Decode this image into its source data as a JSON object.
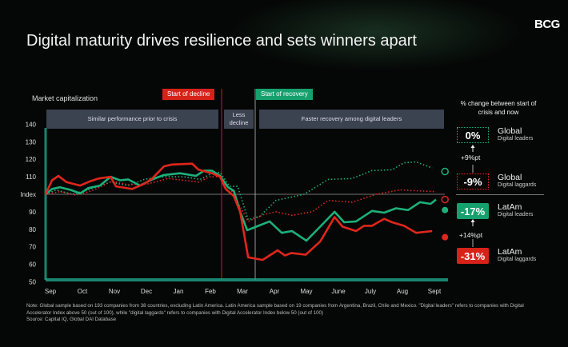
{
  "header": {
    "title": "Digital maturity drives resilience and sets winners apart",
    "logo": "BCG"
  },
  "colors": {
    "leaders": "#1db07a",
    "laggards": "#e0261c",
    "banner": "#3b4250",
    "axis": "#1fa58a"
  },
  "phases": {
    "start_decline": "Start of decline",
    "start_recovery": "Start of recovery",
    "banner1": "Similar performance prior to crisis",
    "banner2": "Less decline",
    "banner3": "Faster recovery among digital leaders"
  },
  "right_panel": {
    "heading": "% change between start of crisis and now",
    "items": [
      {
        "value": "0%",
        "region": "Global",
        "group": "Digital leaders"
      },
      {
        "value": "-9%",
        "region": "Global",
        "group": "Digital laggards"
      },
      {
        "value": "-17%",
        "region": "LatAm",
        "group": "Digital leaders"
      },
      {
        "value": "-31%",
        "region": "LatAm",
        "group": "Digital laggards"
      }
    ],
    "global_gap": "+9%pt",
    "latam_gap": "+14%pt"
  },
  "chart_data": {
    "type": "line",
    "ylabel": "Market capitalization",
    "ylim": [
      50,
      145
    ],
    "yticks": [
      {
        "v": 140,
        "label": "140"
      },
      {
        "v": 130,
        "label": "130"
      },
      {
        "v": 120,
        "label": "120"
      },
      {
        "v": 110,
        "label": "110"
      },
      {
        "v": 100,
        "label": "Index"
      },
      {
        "v": 90,
        "label": "90"
      },
      {
        "v": 80,
        "label": "80"
      },
      {
        "v": 70,
        "label": "70"
      },
      {
        "v": 60,
        "label": "60"
      },
      {
        "v": 50,
        "label": "50"
      }
    ],
    "categories": [
      "Sep",
      "Oct",
      "Nov",
      "Dec",
      "Jan",
      "Feb",
      "Mar",
      "Apr",
      "May",
      "June",
      "July",
      "Aug",
      "Sept"
    ],
    "start_decline_month": 5.35,
    "start_recovery_month": 6.4,
    "series": [
      {
        "key": "global_leaders",
        "style": "dotted",
        "color": "#1db07a",
        "end_marker": "hollow",
        "x": [
          -0.15,
          0.18,
          0.68,
          1.18,
          1.88,
          2.43,
          2.93,
          3.43,
          4.18,
          4.68,
          5.05,
          5.3,
          5.6,
          5.85,
          6.18,
          6.55,
          7.05,
          7.55,
          7.93,
          8.68,
          9.43,
          10.05,
          10.68,
          11.05,
          11.43,
          11.93,
          12.33
        ],
        "y": [
          100,
          102.5,
          100,
          102.5,
          107,
          105,
          108.5,
          110,
          110,
          108.5,
          112,
          112.5,
          104.5,
          104.5,
          85.5,
          87.5,
          96.5,
          98.5,
          100,
          108.5,
          109,
          113.5,
          114,
          118,
          118.5,
          115,
          113
        ]
      },
      {
        "key": "global_laggards",
        "style": "dotted",
        "color": "#e0261c",
        "end_marker": "hollow",
        "x": [
          -0.15,
          0.3,
          0.8,
          1.3,
          1.93,
          2.43,
          3.05,
          3.68,
          4.18,
          4.63,
          4.98,
          5.3,
          5.68,
          6.18,
          6.68,
          7.05,
          7.55,
          8.18,
          8.68,
          9.43,
          10.18,
          10.93,
          11.43,
          12.05,
          12.33
        ],
        "y": [
          100,
          101.5,
          99.5,
          102,
          107.5,
          105.5,
          106,
          109,
          108,
          107,
          110,
          110,
          101.5,
          84.5,
          88.5,
          90,
          88,
          90,
          96.5,
          95.5,
          100,
          102.5,
          102,
          101.5,
          97
        ]
      },
      {
        "key": "latam_leaders",
        "style": "solid",
        "color": "#1db07a",
        "end_marker": "filled",
        "x": [
          -0.15,
          0.05,
          0.3,
          0.63,
          0.93,
          1.18,
          1.55,
          1.88,
          2.18,
          2.43,
          2.8,
          3.18,
          3.55,
          4.05,
          4.55,
          4.8,
          5.05,
          5.3,
          5.55,
          5.73,
          5.93,
          6.15,
          6.43,
          6.85,
          7.23,
          7.55,
          8.0,
          8.43,
          8.88,
          9.18,
          9.55,
          10.05,
          10.43,
          10.8,
          11.18,
          11.55,
          11.88,
          12.05,
          12.33
        ],
        "y": [
          100,
          103,
          104,
          102.5,
          100.5,
          103.5,
          105,
          110,
          108,
          108.5,
          105,
          108.5,
          111,
          112,
          110.5,
          113.5,
          113.5,
          110.5,
          104,
          102,
          90,
          79.5,
          81.5,
          84.5,
          78,
          79,
          73.5,
          81.5,
          90,
          84,
          84.5,
          90.5,
          89.5,
          92,
          91,
          95.5,
          94.5,
          97,
          91
        ]
      },
      {
        "key": "latam_laggards",
        "style": "solid",
        "color": "#e0261c",
        "end_marker": "filled",
        "x": [
          -0.15,
          0.05,
          0.25,
          0.5,
          0.93,
          1.25,
          1.5,
          1.88,
          2.05,
          2.55,
          2.93,
          3.18,
          3.55,
          3.8,
          4.43,
          4.63,
          5.05,
          5.3,
          5.48,
          5.73,
          5.93,
          6.18,
          6.63,
          7.1,
          7.33,
          7.53,
          7.98,
          8.43,
          8.88,
          9.13,
          9.55,
          9.8,
          10.05,
          10.43,
          10.68,
          11.05,
          11.43,
          11.93,
          12.33
        ],
        "y": [
          100,
          108,
          110.5,
          107,
          105,
          107.5,
          109,
          110,
          104.5,
          103,
          106,
          109,
          116,
          117,
          117.5,
          114,
          112,
          110,
          103,
          99,
          90,
          64,
          62.5,
          68,
          65,
          66.5,
          65.5,
          73,
          87,
          81.5,
          79,
          82,
          82,
          86,
          84,
          82,
          78,
          79,
          75.5
        ]
      }
    ]
  },
  "footer": {
    "note": "Note: Global sample based on 193 companies from 38 countries, excluding Latin America. Latin America sample based on 19 companies from Argentina, Brazil, Chile and Mexico. \"Digital leaders\" refers to companies with Digital Accelerator Index above 50 (out of 100), while \"digital laggards\" refers to companies with Digital Accelerator Index below 50 (out of 100)",
    "source": "Source: Capital IQ, Global DAI Database"
  }
}
